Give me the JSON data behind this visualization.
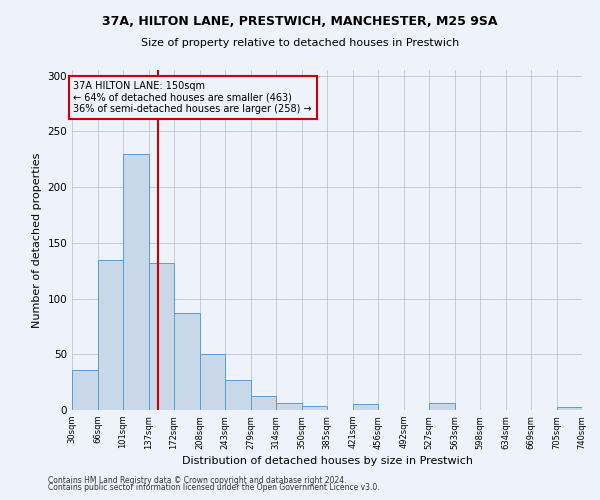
{
  "title_line1": "37A, HILTON LANE, PRESTWICH, MANCHESTER, M25 9SA",
  "title_line2": "Size of property relative to detached houses in Prestwich",
  "xlabel": "Distribution of detached houses by size in Prestwich",
  "ylabel": "Number of detached properties",
  "bar_color": "#c8d8e8",
  "bar_edge_color": "#5b9bd5",
  "vline_x": 150,
  "vline_color": "#cc0000",
  "annotation_title": "37A HILTON LANE: 150sqm",
  "annotation_line2": "← 64% of detached houses are smaller (463)",
  "annotation_line3": "36% of semi-detached houses are larger (258) →",
  "annotation_box_color": "#cc0000",
  "bin_edges": [
    30,
    66,
    101,
    137,
    172,
    208,
    243,
    279,
    314,
    350,
    385,
    421,
    456,
    492,
    527,
    563,
    598,
    634,
    669,
    705,
    740
  ],
  "bar_heights": [
    36,
    135,
    230,
    132,
    87,
    50,
    27,
    13,
    6,
    4,
    0,
    5,
    0,
    0,
    6,
    0,
    0,
    0,
    0,
    3
  ],
  "ylim": [
    0,
    305
  ],
  "yticks": [
    0,
    50,
    100,
    150,
    200,
    250,
    300
  ],
  "background_color": "#eef2fa",
  "footnote_line1": "Contains HM Land Registry data © Crown copyright and database right 2024.",
  "footnote_line2": "Contains public sector information licensed under the Open Government Licence v3.0."
}
